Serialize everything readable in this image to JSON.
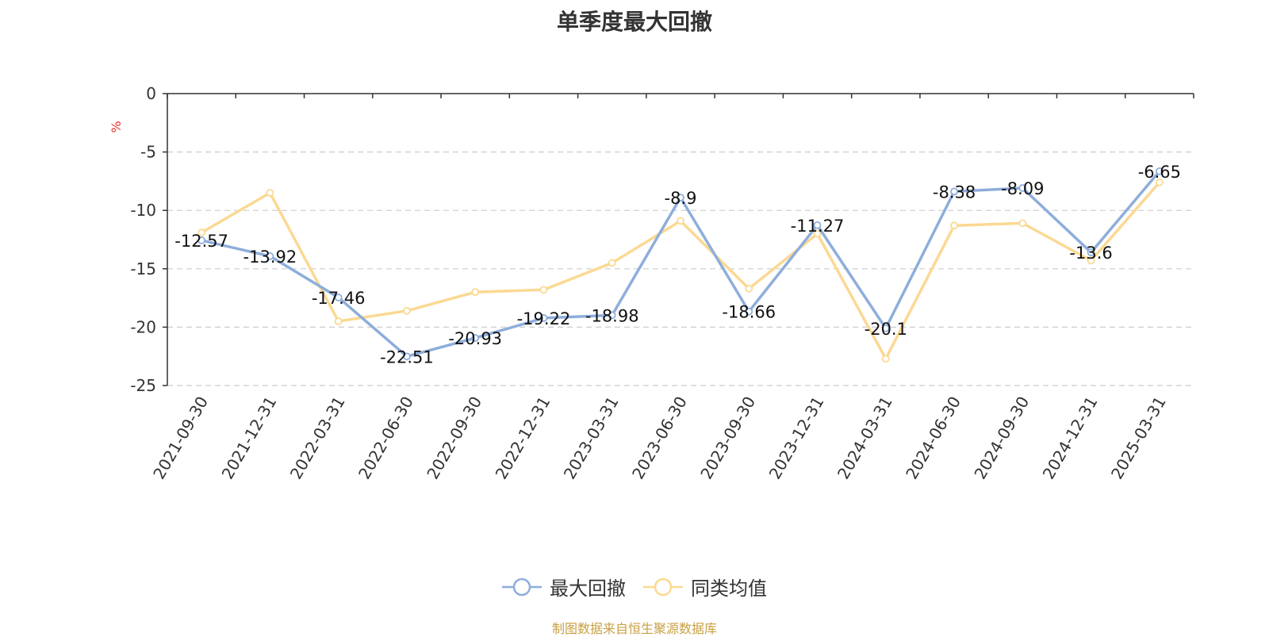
{
  "chart_data": {
    "type": "line",
    "title": "单季度最大回撤",
    "ylabel": "%",
    "xlabel": "",
    "ylim": [
      -25,
      0
    ],
    "yticks": [
      0,
      -5,
      -10,
      -15,
      -20,
      -25
    ],
    "grid": true,
    "legend_position": "bottom-center",
    "categories": [
      "2021-09-30",
      "2021-12-31",
      "2022-03-31",
      "2022-06-30",
      "2022-09-30",
      "2022-12-31",
      "2023-03-31",
      "2023-06-30",
      "2023-09-30",
      "2023-12-31",
      "2024-03-31",
      "2024-06-30",
      "2024-09-30",
      "2024-12-31",
      "2025-03-31"
    ],
    "series": [
      {
        "name": "最大回撤",
        "color": "#8eaedb",
        "show_labels": true,
        "values": [
          -12.57,
          -13.92,
          -17.46,
          -22.51,
          -20.93,
          -19.22,
          -18.98,
          -8.9,
          -18.66,
          -11.27,
          -20.1,
          -8.38,
          -8.09,
          -13.6,
          -6.65
        ]
      },
      {
        "name": "同类均值",
        "color": "#fbd993",
        "show_labels": false,
        "values": [
          -11.9,
          -8.5,
          -19.5,
          -18.6,
          -17.0,
          -16.8,
          -14.5,
          -10.9,
          -16.7,
          -12.0,
          -22.7,
          -11.3,
          -11.1,
          -14.3,
          -7.6
        ]
      }
    ]
  },
  "source_note": "制图数据来自恒生聚源数据库",
  "colors": {
    "axis": "#333333",
    "grid": "#cccccc",
    "ylabel": "#ee3333",
    "source": "#c8a042"
  }
}
